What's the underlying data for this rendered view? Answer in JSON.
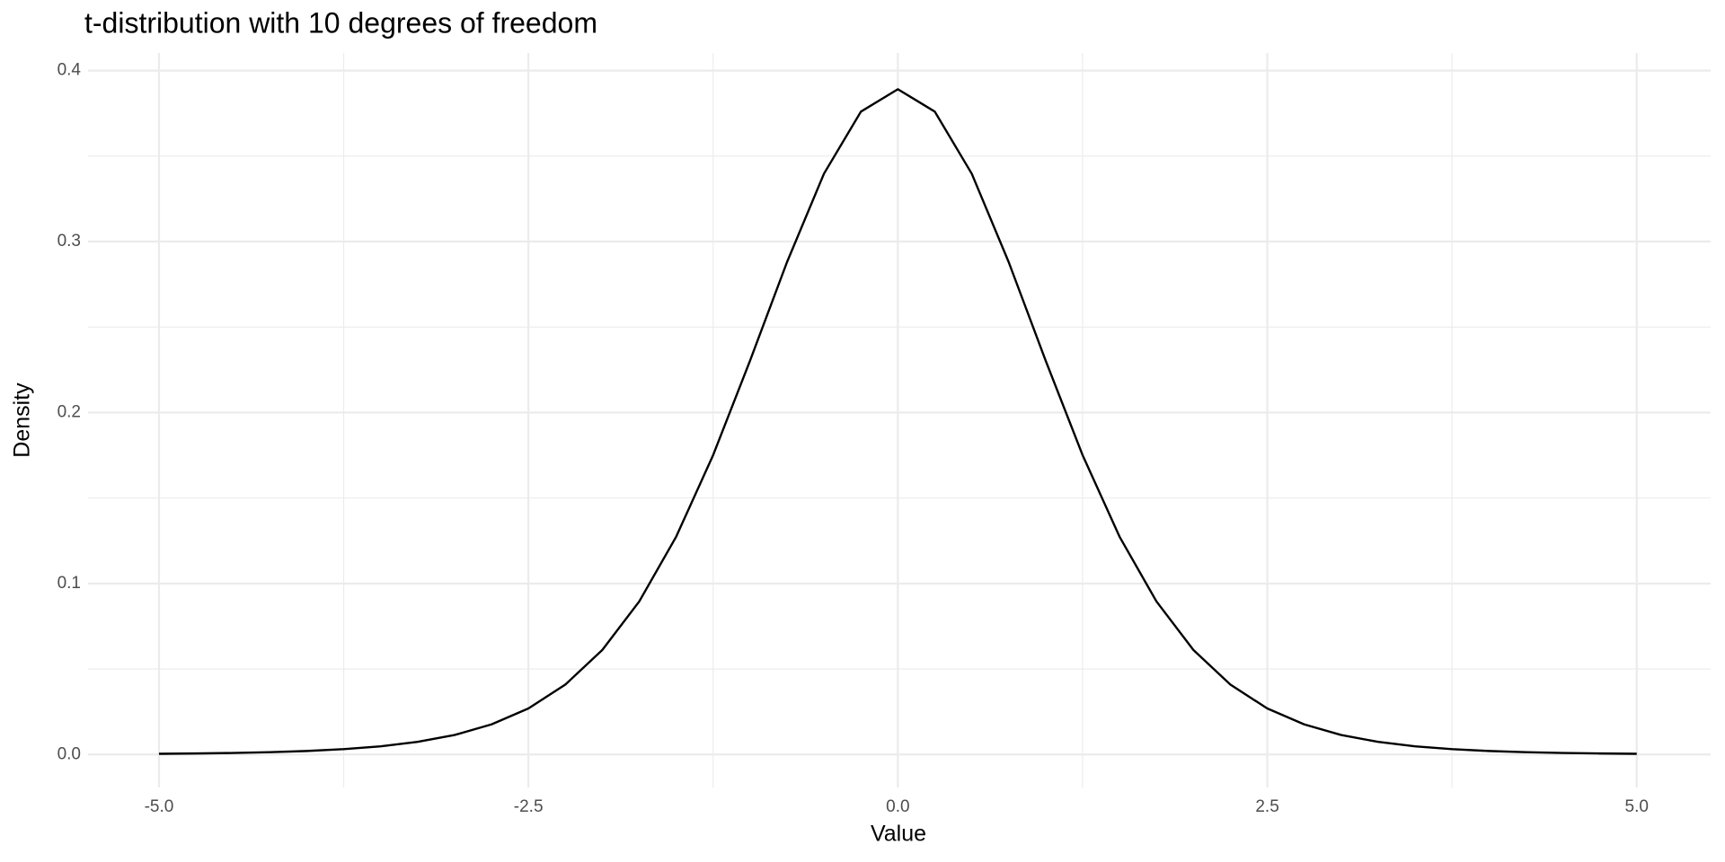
{
  "chart_data": {
    "type": "line",
    "title": "t-distribution with 10 degrees of freedom",
    "x_label": "Value",
    "y_label": "Density",
    "x": [
      -5,
      -4.75,
      -4.5,
      -4.25,
      -4,
      -3.75,
      -3.5,
      -3.25,
      -3,
      -2.75,
      -2.5,
      -2.25,
      -2,
      -1.75,
      -1.5,
      -1.25,
      -1,
      -0.75,
      -0.5,
      -0.25,
      0,
      0.25,
      0.5,
      0.75,
      1,
      1.25,
      1.5,
      1.75,
      2,
      2.25,
      2.5,
      2.75,
      3,
      3.25,
      3.5,
      3.75,
      4,
      4.25,
      4.5,
      4.75,
      5
    ],
    "series": [
      {
        "name": "t-distribution",
        "color": "#000000",
        "values": [
          0.0004,
          0.00059,
          0.00088,
          0.00134,
          0.00203,
          0.00311,
          0.00478,
          0.00738,
          0.0114,
          0.0176,
          0.0269,
          0.0409,
          0.0611,
          0.0895,
          0.1274,
          0.1751,
          0.2304,
          0.288,
          0.3397,
          0.376,
          0.3891,
          0.376,
          0.3397,
          0.288,
          0.2304,
          0.1751,
          0.1274,
          0.0895,
          0.0611,
          0.0409,
          0.0269,
          0.0176,
          0.0114,
          0.00738,
          0.00478,
          0.00311,
          0.00203,
          0.00134,
          0.00088,
          0.00059,
          0.0004
        ]
      }
    ],
    "xlim": [
      -5.48,
      5.5
    ],
    "ylim": [
      -0.0193,
      0.4103
    ],
    "xticks": [
      {
        "value": -5,
        "label": "-5.0"
      },
      {
        "value": -2.5,
        "label": "-2.5"
      },
      {
        "value": 0,
        "label": "0.0"
      },
      {
        "value": 2.5,
        "label": "2.5"
      },
      {
        "value": 5,
        "label": "5.0"
      }
    ],
    "yticks": [
      {
        "value": 0,
        "label": "0.0"
      },
      0.1,
      0.2,
      0.3,
      0.4
    ],
    "grid": true
  }
}
